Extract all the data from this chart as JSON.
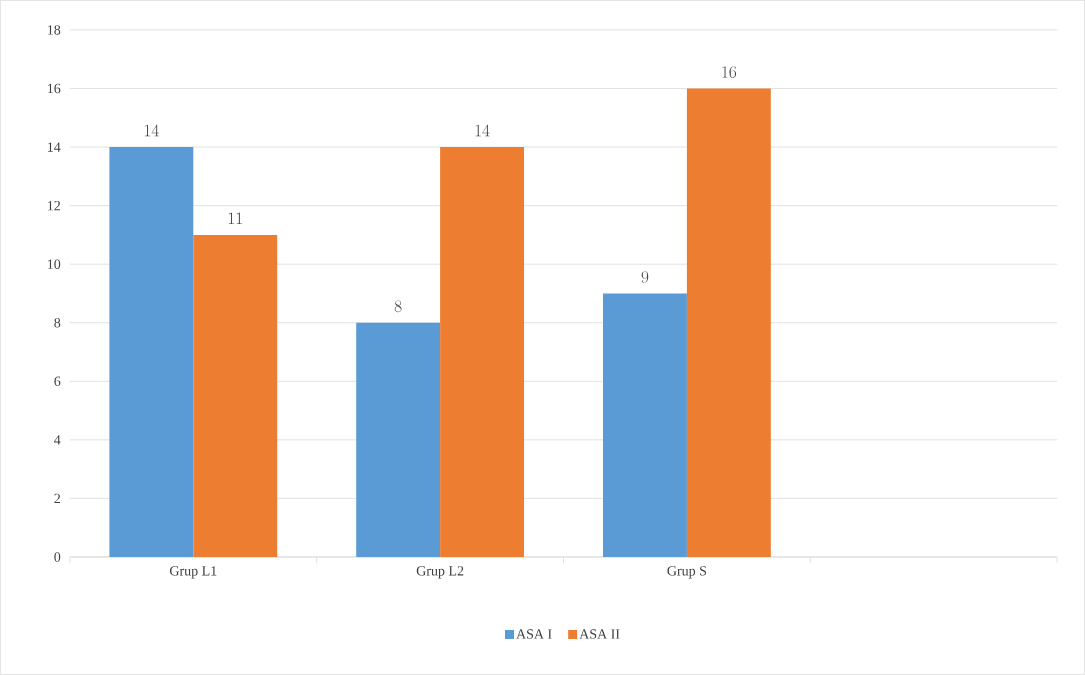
{
  "chart_data": {
    "type": "bar",
    "categories": [
      "Grup L1",
      "Grup L2",
      "Grup S",
      null
    ],
    "series": [
      {
        "name": "ASA I",
        "color": "#5b9bd5",
        "values": [
          14,
          8,
          9,
          null
        ]
      },
      {
        "name": "ASA II",
        "color": "#ed7d31",
        "values": [
          11,
          14,
          16,
          null
        ]
      }
    ],
    "ylim": [
      0,
      18
    ],
    "yticks": [
      0,
      2,
      4,
      6,
      8,
      10,
      12,
      14,
      16,
      18
    ],
    "grid": "y",
    "legend": "bottom",
    "data_labels": true
  }
}
